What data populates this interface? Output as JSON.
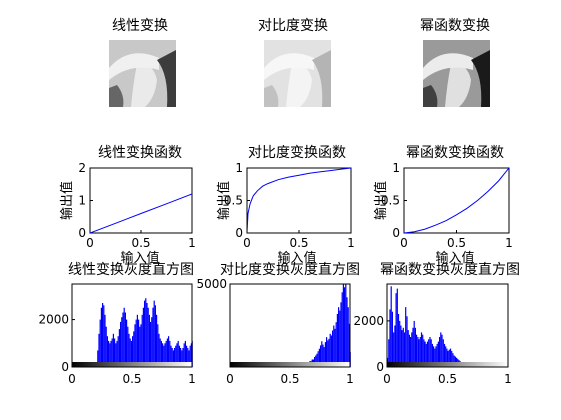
{
  "chart_data": [
    {
      "type": "image",
      "title": "线性变换",
      "image": "lena-grayscale-linear",
      "tint": {
        "bg": "#c8c8c8",
        "light": "#f0f0f0",
        "dark": "#3c3c3c"
      }
    },
    {
      "type": "image",
      "title": "对比度变换",
      "image": "lena-grayscale-contrast",
      "tint": {
        "bg": "#e2e2e2",
        "light": "#f7f7f7",
        "dark": "#b4b4b4"
      }
    },
    {
      "type": "image",
      "title": "幂函数变换",
      "image": "lena-grayscale-power",
      "tint": {
        "bg": "#9a9a9a",
        "light": "#ececec",
        "dark": "#1a1a1a"
      }
    },
    {
      "type": "line",
      "title": "线性变换函数",
      "xlabel": "输入值",
      "ylabel": "输出值",
      "xlim": [
        0,
        1
      ],
      "ylim": [
        0,
        2
      ],
      "xticks": [
        "0",
        "0.5",
        "1"
      ],
      "yticks": [
        "0",
        "1",
        "2"
      ],
      "x": [
        0,
        0.25,
        0.5,
        0.75,
        1
      ],
      "y": [
        0,
        0.3,
        0.6,
        0.9,
        1.2
      ],
      "color": "#0000ff"
    },
    {
      "type": "line",
      "title": "对比度变换函数",
      "xlabel": "输入值",
      "ylabel": "输出值",
      "xlim": [
        0,
        1
      ],
      "ylim": [
        0,
        1
      ],
      "xticks": [
        "0",
        "0.5",
        "1"
      ],
      "yticks": [
        "0",
        "0.5",
        "1"
      ],
      "x": [
        0,
        0.01,
        0.03,
        0.06,
        0.1,
        0.15,
        0.2,
        0.3,
        0.4,
        0.5,
        0.6,
        0.7,
        0.8,
        0.9,
        1
      ],
      "y": [
        0,
        0.3,
        0.45,
        0.57,
        0.65,
        0.72,
        0.76,
        0.82,
        0.86,
        0.89,
        0.92,
        0.94,
        0.96,
        0.98,
        1
      ],
      "color": "#0000ff"
    },
    {
      "type": "line",
      "title": "幂函数变换函数",
      "xlabel": "输入值",
      "ylabel": "输出值",
      "xlim": [
        0,
        1
      ],
      "ylim": [
        0,
        1
      ],
      "xticks": [
        "0",
        "0.5",
        "1"
      ],
      "yticks": [
        "0",
        "0.5",
        "1"
      ],
      "x": [
        0,
        0.1,
        0.2,
        0.3,
        0.4,
        0.5,
        0.6,
        0.7,
        0.8,
        0.9,
        1
      ],
      "y": [
        0,
        0.02,
        0.06,
        0.12,
        0.19,
        0.28,
        0.38,
        0.5,
        0.64,
        0.8,
        1
      ],
      "color": "#0000ff"
    },
    {
      "type": "bar",
      "title": "线性变换灰度直方图",
      "xlim": [
        0,
        1
      ],
      "ylim": [
        0,
        3500
      ],
      "xticks": [
        "0",
        "0.5",
        "1"
      ],
      "yticks": [
        "0",
        "2000"
      ],
      "ytick_values": [
        0,
        2000
      ],
      "color": "#0000ff",
      "x": [
        0.2,
        0.21,
        0.22,
        0.23,
        0.24,
        0.25,
        0.26,
        0.27,
        0.28,
        0.29,
        0.3,
        0.31,
        0.32,
        0.33,
        0.34,
        0.35,
        0.36,
        0.37,
        0.38,
        0.39,
        0.4,
        0.41,
        0.42,
        0.43,
        0.44,
        0.45,
        0.46,
        0.47,
        0.48,
        0.49,
        0.5,
        0.51,
        0.52,
        0.53,
        0.54,
        0.55,
        0.56,
        0.57,
        0.58,
        0.59,
        0.6,
        0.61,
        0.62,
        0.63,
        0.64,
        0.65,
        0.66,
        0.67,
        0.68,
        0.69,
        0.7,
        0.71,
        0.72,
        0.73,
        0.74,
        0.75,
        0.76,
        0.77,
        0.78,
        0.79,
        0.8,
        0.81,
        0.82,
        0.83,
        0.84,
        0.85,
        0.86,
        0.87,
        0.88,
        0.89,
        0.9,
        0.91,
        0.92,
        0.93,
        0.94,
        0.95,
        0.96,
        0.97,
        0.98,
        0.99,
        1.0
      ],
      "values": [
        180,
        700,
        1400,
        2000,
        2500,
        2700,
        2600,
        2200,
        1700,
        1300,
        1100,
        1000,
        1100,
        1200,
        1400,
        1200,
        1000,
        1100,
        1300,
        1600,
        1900,
        2100,
        2300,
        2500,
        2300,
        2000,
        1700,
        1400,
        1200,
        1100,
        1300,
        1500,
        1800,
        2000,
        2200,
        2000,
        1700,
        1800,
        2200,
        2500,
        2800,
        2900,
        2700,
        2500,
        2200,
        1900,
        2100,
        2500,
        2800,
        2600,
        2200,
        1800,
        1400,
        1200,
        1100,
        1000,
        900,
        1000,
        1100,
        1200,
        1300,
        1100,
        900,
        800,
        700,
        800,
        900,
        1000,
        1100,
        900,
        800,
        700,
        800,
        1000,
        1100,
        900,
        800,
        700,
        900,
        1000,
        1100
      ]
    },
    {
      "type": "bar",
      "title": "对比度变换灰度直方图",
      "xlim": [
        0,
        1
      ],
      "ylim": [
        0,
        5000
      ],
      "xticks": [
        "0",
        "0.5",
        "1"
      ],
      "yticks": [
        "5000"
      ],
      "ytick_values": [
        5000
      ],
      "color": "#0000ff",
      "x": [
        0.58,
        0.6,
        0.62,
        0.64,
        0.66,
        0.68,
        0.7,
        0.71,
        0.72,
        0.73,
        0.74,
        0.75,
        0.76,
        0.77,
        0.78,
        0.79,
        0.8,
        0.81,
        0.82,
        0.83,
        0.84,
        0.85,
        0.86,
        0.87,
        0.88,
        0.89,
        0.9,
        0.91,
        0.92,
        0.93,
        0.94,
        0.95,
        0.96,
        0.97,
        0.98,
        0.99,
        1.0
      ],
      "values": [
        80,
        150,
        200,
        280,
        350,
        450,
        600,
        700,
        800,
        950,
        1100,
        1300,
        1550,
        1350,
        1200,
        1500,
        1800,
        1600,
        1700,
        2000,
        1900,
        2200,
        2500,
        2300,
        2700,
        3200,
        3600,
        3400,
        3900,
        4500,
        5000,
        4800,
        5100,
        4200,
        3600,
        2600,
        900
      ]
    },
    {
      "type": "bar",
      "title": "幂函数变换灰度直方图",
      "xlim": [
        0,
        1
      ],
      "ylim": [
        0,
        3600
      ],
      "xticks": [
        "0",
        "0.5",
        "1"
      ],
      "yticks": [
        "0",
        "2000"
      ],
      "ytick_values": [
        0,
        2000
      ],
      "color": "#0000ff",
      "x": [
        0.0,
        0.01,
        0.02,
        0.03,
        0.04,
        0.05,
        0.06,
        0.07,
        0.08,
        0.09,
        0.1,
        0.11,
        0.12,
        0.13,
        0.14,
        0.15,
        0.16,
        0.17,
        0.18,
        0.19,
        0.2,
        0.21,
        0.22,
        0.23,
        0.24,
        0.25,
        0.26,
        0.27,
        0.28,
        0.29,
        0.3,
        0.31,
        0.32,
        0.33,
        0.34,
        0.35,
        0.36,
        0.37,
        0.38,
        0.39,
        0.4,
        0.41,
        0.42,
        0.43,
        0.44,
        0.45,
        0.46,
        0.47,
        0.48,
        0.49,
        0.5,
        0.51,
        0.52,
        0.53,
        0.54,
        0.55,
        0.56,
        0.57,
        0.58,
        0.59,
        0.6,
        0.61,
        0.62,
        0.63,
        0.64,
        0.65,
        0.66,
        0.67,
        0.68,
        0.69,
        0.7,
        0.72,
        0.74,
        0.76,
        0.78,
        0.8
      ],
      "values": [
        400,
        1200,
        2500,
        3500,
        2400,
        1500,
        1800,
        3200,
        3400,
        2300,
        2000,
        1800,
        1600,
        1700,
        1500,
        2600,
        2200,
        1600,
        1400,
        1300,
        1500,
        1700,
        2000,
        1700,
        1400,
        1300,
        1200,
        1300,
        1500,
        1400,
        1200,
        1100,
        1000,
        1100,
        1200,
        1300,
        1200,
        1000,
        900,
        800,
        900,
        1000,
        1100,
        1300,
        1500,
        1400,
        1200,
        1000,
        900,
        800,
        700,
        750,
        800,
        700,
        600,
        500,
        450,
        400,
        350,
        300,
        250,
        200,
        180,
        150,
        120,
        100,
        90,
        80,
        70,
        60,
        50,
        40,
        30,
        20,
        15,
        10
      ]
    }
  ]
}
